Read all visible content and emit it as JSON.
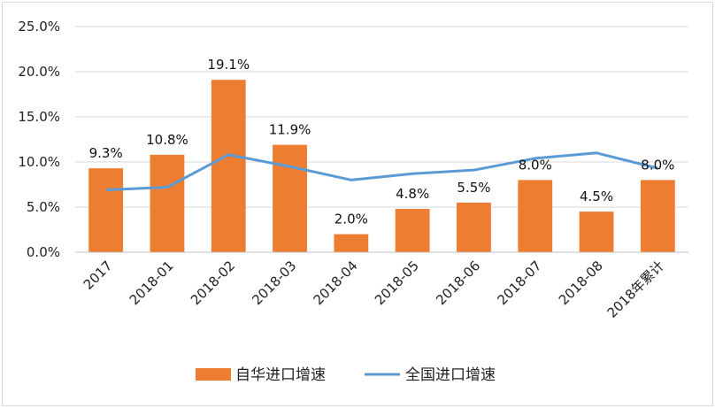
{
  "chart_data": {
    "type": "bar",
    "categories": [
      "2017",
      "2018-01",
      "2018-02",
      "2018-03",
      "2018-04",
      "2018-05",
      "2018-06",
      "2018-07",
      "2018-08",
      "2018年累计"
    ],
    "series": [
      {
        "name": "自华进口增速",
        "type": "bar",
        "color": "#ED7D31",
        "values": [
          9.3,
          10.8,
          19.1,
          11.9,
          2.0,
          4.8,
          5.5,
          8.0,
          4.5,
          8.0
        ],
        "labels": [
          "9.3%",
          "10.8%",
          "19.1%",
          "11.9%",
          "2.0%",
          "4.8%",
          "5.5%",
          "8.0%",
          "4.5%",
          "8.0%"
        ]
      },
      {
        "name": "全国进口增速",
        "type": "line",
        "color": "#5B9BD5",
        "values": [
          6.9,
          7.2,
          10.8,
          9.5,
          8.0,
          8.7,
          9.1,
          10.4,
          11.0,
          9.3
        ]
      }
    ],
    "ylim": [
      0,
      25
    ],
    "yticks": [
      "0.0%",
      "5.0%",
      "10.0%",
      "15.0%",
      "20.0%",
      "25.0%"
    ],
    "title": "",
    "xlabel": "",
    "ylabel": "",
    "grid": true,
    "legend": "bottom-center"
  }
}
